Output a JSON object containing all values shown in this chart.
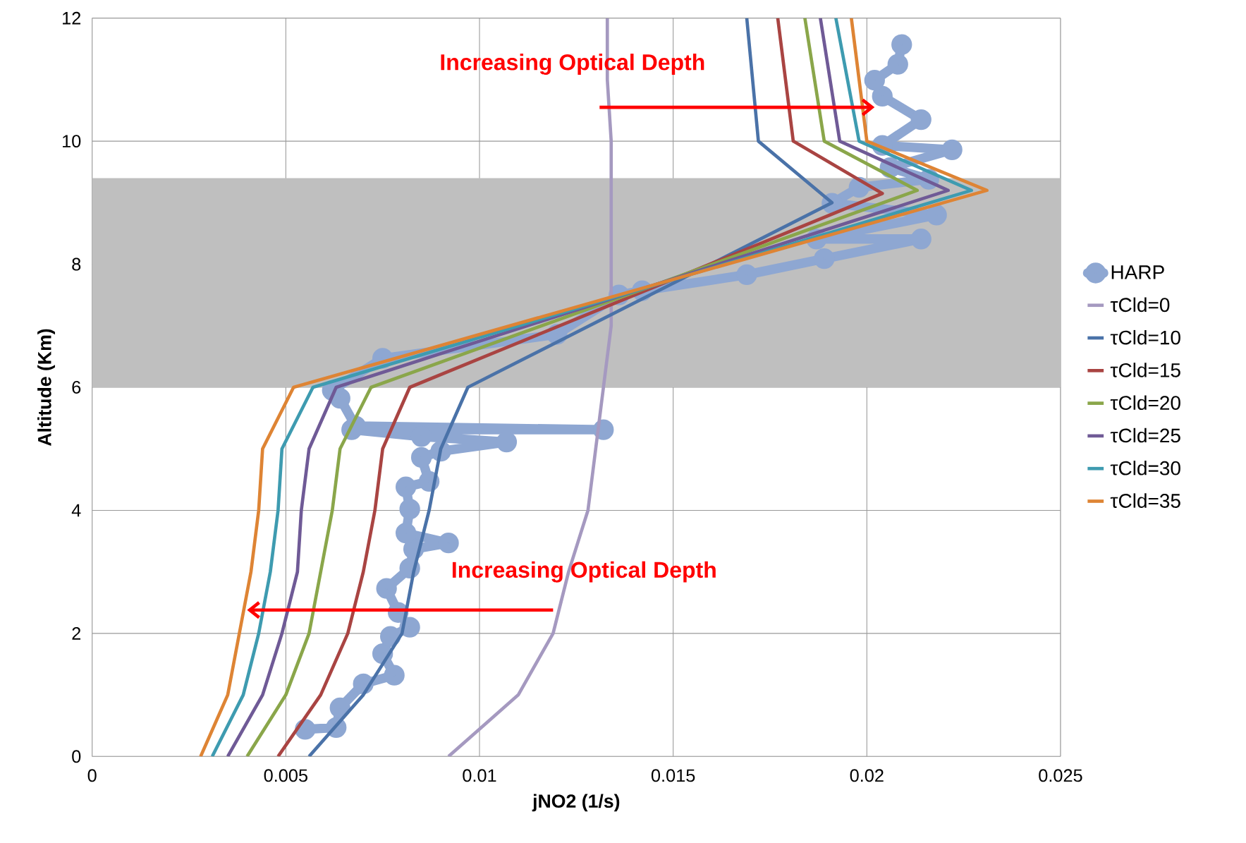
{
  "chart_data": {
    "type": "line",
    "xlabel": "jNO2 (1/s)",
    "ylabel": "Altitude (Km)",
    "xlim": [
      0,
      0.025
    ],
    "ylim": [
      0,
      12
    ],
    "xticks": [
      0,
      0.005,
      0.01,
      0.015,
      0.02,
      0.025
    ],
    "yticks": [
      0,
      2,
      4,
      6,
      8,
      10,
      12
    ],
    "grid": true,
    "legend": "right",
    "bands": [
      {
        "axis": "y",
        "from": 6,
        "to": 9.4,
        "color": "#bfbfbf"
      }
    ],
    "annotations": [
      "Increasing Optical Depth",
      "Increasing Optical Depth"
    ],
    "series": [
      {
        "name": "HARP",
        "color": "#8ea7d2",
        "marker": "circle",
        "x": [
          0.0055,
          0.0063,
          0.0064,
          0.007,
          0.0078,
          0.0075,
          0.0077,
          0.0082,
          0.0079,
          0.0076,
          0.0082,
          0.0083,
          0.0092,
          0.0081,
          0.0082,
          0.0081,
          0.0087,
          0.0085,
          0.009,
          0.0107,
          0.0085,
          0.0067,
          0.0132,
          0.0068,
          0.0064,
          0.0062,
          0.0075,
          0.012,
          0.0136,
          0.0142,
          0.0169,
          0.0189,
          0.0214,
          0.0187,
          0.0218,
          0.0191,
          0.0198,
          0.0216,
          0.0206,
          0.0222,
          0.0204,
          0.0214,
          0.0204,
          0.0202,
          0.0208,
          0.0209
        ],
        "values": [
          0.44,
          0.47,
          0.79,
          1.18,
          1.32,
          1.67,
          1.95,
          2.1,
          2.34,
          2.73,
          3.06,
          3.37,
          3.47,
          3.63,
          4.02,
          4.38,
          4.47,
          4.86,
          4.96,
          5.11,
          5.2,
          5.31,
          5.31,
          5.37,
          5.82,
          5.95,
          6.47,
          6.86,
          7.5,
          7.57,
          7.83,
          8.09,
          8.41,
          8.41,
          8.8,
          8.99,
          9.25,
          9.38,
          9.57,
          9.86,
          9.93,
          10.35,
          10.73,
          10.99,
          11.25,
          11.57
        ]
      },
      {
        "name": "τCld=0",
        "color": "#a599c0",
        "x": [
          0.0092,
          0.011,
          0.0119,
          0.0123,
          0.0128,
          0.013,
          0.0132,
          0.0134,
          0.0134,
          0.0134,
          0.0134,
          0.0133,
          0.0133
        ],
        "values": [
          0,
          1,
          2,
          3,
          4,
          5,
          6,
          7,
          8,
          9,
          10,
          11,
          12
        ]
      },
      {
        "name": "τCld=10",
        "color": "#4a72a8",
        "x": [
          0.0056,
          0.007,
          0.008,
          0.0083,
          0.0087,
          0.009,
          0.0097,
          0.0191,
          0.0172,
          0.0169
        ],
        "values": [
          0,
          1,
          2,
          3,
          4,
          5,
          6,
          9,
          10,
          12
        ]
      },
      {
        "name": "τCld=15",
        "color": "#a94442",
        "x": [
          0.0048,
          0.0059,
          0.0066,
          0.007,
          0.0073,
          0.0075,
          0.0082,
          0.0204,
          0.0181,
          0.0177
        ],
        "values": [
          0,
          1,
          2,
          3,
          4,
          5,
          6,
          9.15,
          10,
          12
        ]
      },
      {
        "name": "τCld=20",
        "color": "#8aa64a",
        "x": [
          0.004,
          0.005,
          0.0056,
          0.0059,
          0.0062,
          0.0064,
          0.0072,
          0.0213,
          0.0189,
          0.0184
        ],
        "values": [
          0,
          1,
          2,
          3,
          4,
          5,
          6,
          9.2,
          10,
          12
        ]
      },
      {
        "name": "τCld=25",
        "color": "#6f5a96",
        "x": [
          0.0035,
          0.0044,
          0.0049,
          0.0053,
          0.0054,
          0.0056,
          0.0063,
          0.0221,
          0.0193,
          0.0188
        ],
        "values": [
          0,
          1,
          2,
          3,
          4,
          5,
          6,
          9.2,
          10,
          12
        ]
      },
      {
        "name": "τCld=30",
        "color": "#3e9bb0",
        "x": [
          0.0031,
          0.0039,
          0.0043,
          0.0046,
          0.0048,
          0.0049,
          0.0057,
          0.0227,
          0.0198,
          0.0192
        ],
        "values": [
          0,
          1,
          2,
          3,
          4,
          5,
          6,
          9.2,
          10,
          12
        ]
      },
      {
        "name": "τCld=35",
        "color": "#de8434",
        "x": [
          0.0028,
          0.0035,
          0.0038,
          0.0041,
          0.0043,
          0.0044,
          0.0052,
          0.0231,
          0.02,
          0.0196
        ],
        "values": [
          0,
          1,
          2,
          3,
          4,
          5,
          6,
          9.2,
          10,
          12
        ]
      }
    ]
  }
}
